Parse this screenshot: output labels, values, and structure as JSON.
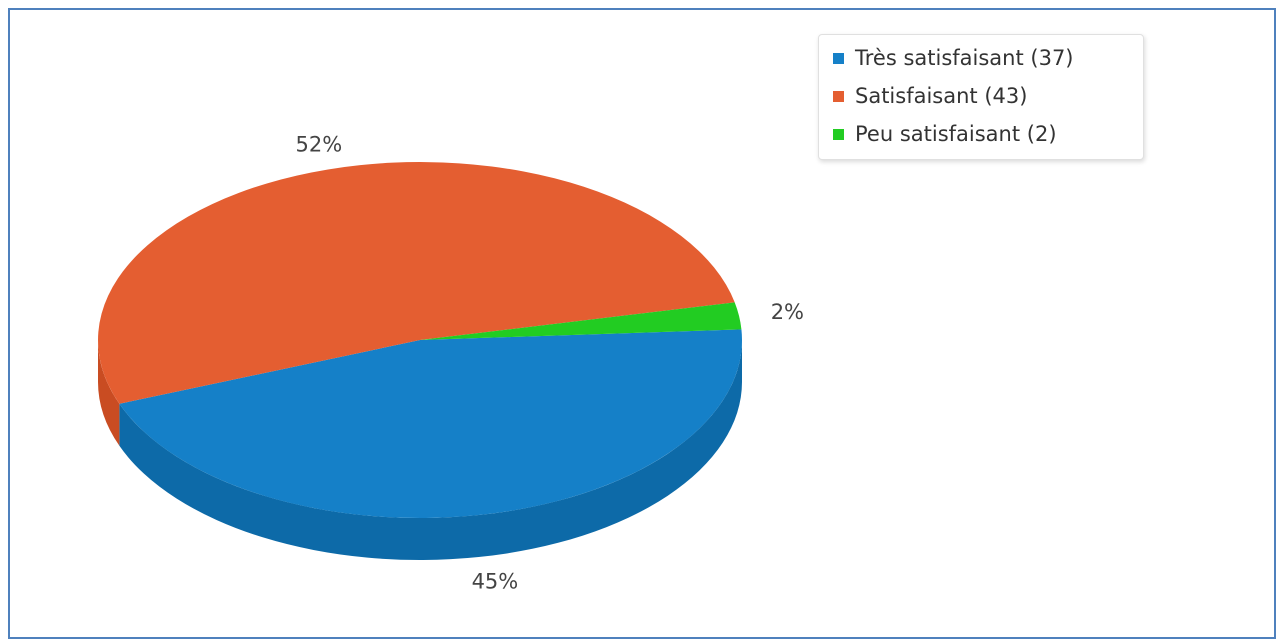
{
  "chart_data": {
    "type": "pie",
    "style": "3d",
    "legend_position": "top-right",
    "slices": [
      {
        "label": "Très satisfaisant",
        "value": 37,
        "legend": "Très satisfaisant (37)",
        "percent_label": "45%",
        "color": "#1580c8",
        "side_color": "#0d6aa8"
      },
      {
        "label": "Satisfaisant",
        "value": 43,
        "legend": "Satisfaisant (43)",
        "percent_label": "52%",
        "color": "#e45e31",
        "side_color": "#c94c22"
      },
      {
        "label": "Peu satisfaisant",
        "value": 2,
        "legend": "Peu satisfaisant (2)",
        "percent_label": "2%",
        "color": "#22cc22",
        "side_color": "#18a518"
      }
    ]
  }
}
